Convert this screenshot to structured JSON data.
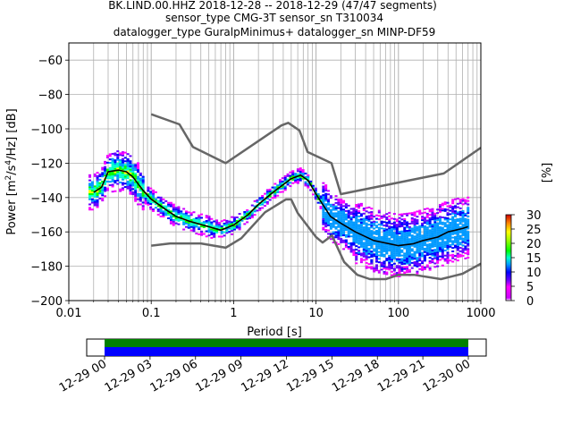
{
  "chart_data": {
    "type": "heatmap",
    "title_lines": [
      "BK.LIND.00.HHZ   2018-12-28 -- 2018-12-29  (47/47 segments)",
      "sensor_type CMG-3T sensor_sn T310034",
      "datalogger_type GuralpMinimus+ datalogger_sn MINP-DF59"
    ],
    "xlabel": "Period [s]",
    "ylabel_parts": {
      "before": "Power [m",
      "sup1": "2",
      "mid": "/s",
      "sup2": "4",
      "after": "/Hz] [dB]"
    },
    "xscale": "log",
    "xlim": [
      0.01,
      1000
    ],
    "ylim": [
      -200,
      -50
    ],
    "xtick_values": [
      0.01,
      0.1,
      1,
      10,
      100,
      1000
    ],
    "xtick_labels": [
      "0.01",
      "0.1",
      "1",
      "10",
      "100",
      "1000"
    ],
    "ytick_values": [
      -200,
      -180,
      -160,
      -140,
      -120,
      -100,
      -80,
      -60
    ],
    "ytick_labels": [
      "−200",
      "−180",
      "−160",
      "−140",
      "−120",
      "−100",
      "−80",
      "−60"
    ],
    "grid": true,
    "colorbar": {
      "label": "[%]",
      "ticks": [
        "0",
        "5",
        "10",
        "15",
        "20",
        "25",
        "30"
      ],
      "tick_values": [
        0,
        5,
        10,
        15,
        20,
        25,
        30
      ],
      "range": [
        0,
        30
      ]
    },
    "noise_models": [
      {
        "role": "high",
        "color": "#666666",
        "points": [
          [
            0.1,
            -91.5
          ],
          [
            0.22,
            -97.4
          ],
          [
            0.32,
            -110.5
          ],
          [
            0.8,
            -120
          ],
          [
            3.8,
            -98
          ],
          [
            4.6,
            -96.5
          ],
          [
            6.3,
            -101
          ],
          [
            7.9,
            -113.5
          ],
          [
            15.4,
            -120
          ],
          [
            20,
            -138
          ],
          [
            354.8,
            -126
          ],
          [
            1000,
            -111
          ]
        ]
      },
      {
        "role": "low",
        "color": "#666666",
        "points": [
          [
            0.1,
            -168
          ],
          [
            0.17,
            -166.7
          ],
          [
            0.4,
            -166.7
          ],
          [
            0.8,
            -169.2
          ],
          [
            1.24,
            -163.7
          ],
          [
            2.4,
            -148.6
          ],
          [
            4.3,
            -141.1
          ],
          [
            5,
            -141.1
          ],
          [
            6,
            -149
          ],
          [
            10,
            -163
          ],
          [
            12,
            -166.2
          ],
          [
            15.6,
            -162.1
          ],
          [
            21.9,
            -177.5
          ],
          [
            31.6,
            -185
          ],
          [
            45,
            -187.5
          ],
          [
            70,
            -187.5
          ],
          [
            101,
            -185
          ],
          [
            154,
            -185
          ],
          [
            328,
            -187.5
          ],
          [
            600,
            -184.4
          ],
          [
            1000,
            -178.5
          ]
        ]
      }
    ],
    "mode_curve": {
      "color": "#000000",
      "points": [
        [
          0.02,
          -137
        ],
        [
          0.025,
          -134
        ],
        [
          0.03,
          -125
        ],
        [
          0.04,
          -124
        ],
        [
          0.05,
          -125
        ],
        [
          0.06,
          -128
        ],
        [
          0.08,
          -136
        ],
        [
          0.1,
          -141
        ],
        [
          0.15,
          -147
        ],
        [
          0.2,
          -151
        ],
        [
          0.3,
          -154
        ],
        [
          0.5,
          -157
        ],
        [
          0.7,
          -159
        ],
        [
          1,
          -156
        ],
        [
          1.5,
          -150
        ],
        [
          2,
          -144
        ],
        [
          3,
          -137
        ],
        [
          5,
          -129
        ],
        [
          6.5,
          -127
        ],
        [
          8,
          -130
        ],
        [
          10,
          -138
        ],
        [
          15,
          -151
        ],
        [
          20,
          -155
        ],
        [
          30,
          -160
        ],
        [
          50,
          -165
        ],
        [
          100,
          -168
        ],
        [
          150,
          -167
        ],
        [
          200,
          -165
        ],
        [
          300,
          -163
        ],
        [
          400,
          -160
        ],
        [
          600,
          -158
        ],
        [
          700,
          -157
        ]
      ]
    },
    "density_bands": [
      {
        "range": [
          0.018,
          0.03
        ],
        "center_offset_db": 0,
        "spread_db": 10
      },
      {
        "range": [
          0.03,
          0.08
        ],
        "center_offset_db": 0,
        "spread_db": 12
      },
      {
        "range": [
          0.08,
          0.6
        ],
        "center_offset_db": 0,
        "spread_db": 6
      },
      {
        "range": [
          0.6,
          1.2
        ],
        "center_offset_db": 0,
        "spread_db": 5
      },
      {
        "range": [
          1.2,
          12
        ],
        "center_offset_db": 0,
        "spread_db": 4
      },
      {
        "range": [
          12,
          30
        ],
        "center_offset_db": 0,
        "spread_db": 14
      },
      {
        "range": [
          30,
          700
        ],
        "center_offset_db": 0,
        "spread_db": 18
      }
    ]
  },
  "timeline": {
    "tick_labels": [
      "12-29 00",
      "12-29 03",
      "12-29 06",
      "12-29 09",
      "12-29 12",
      "12-29 15",
      "12-29 18",
      "12-29 21",
      "12-30 00"
    ],
    "coverage_colors": {
      "data": "#0000ff",
      "gapless": "#008000"
    },
    "coverage_fraction": 1.0
  }
}
